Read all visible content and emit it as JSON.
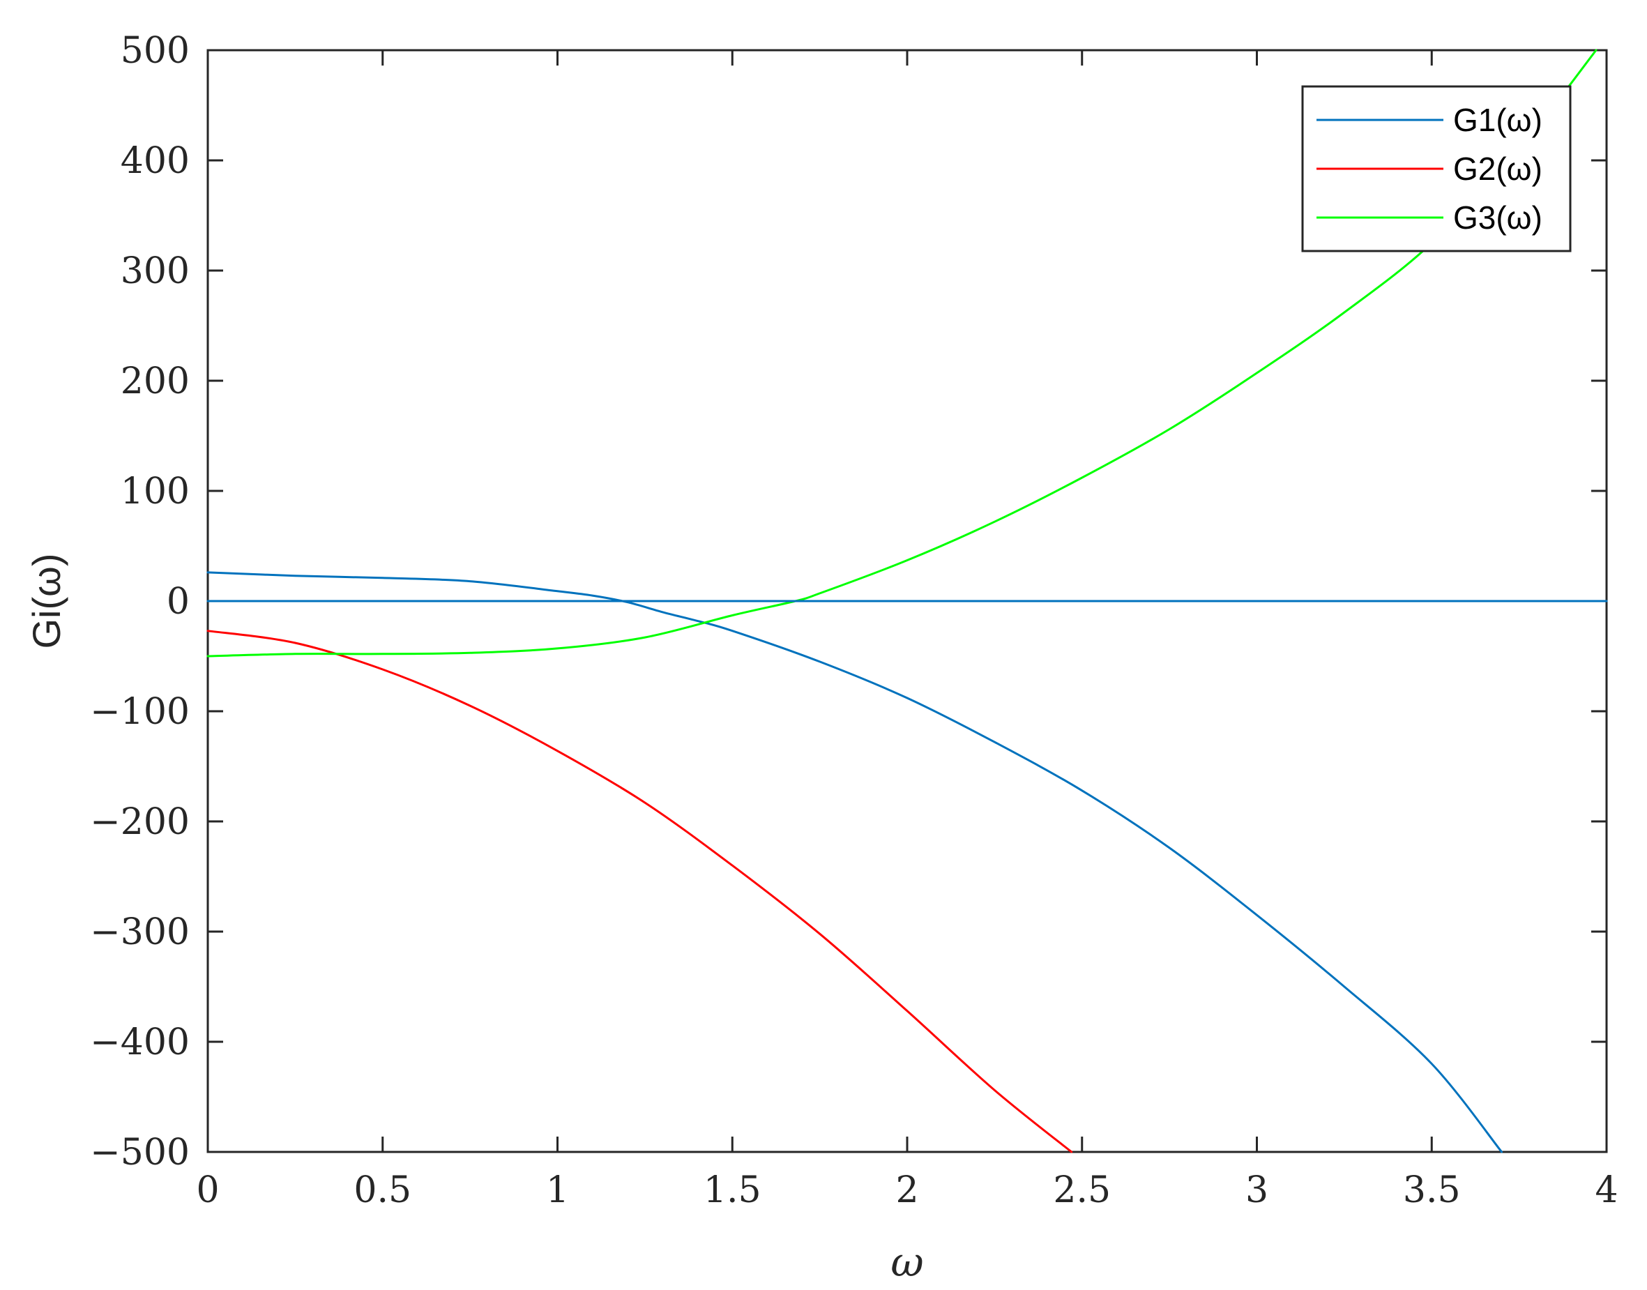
{
  "chart_data": {
    "type": "line",
    "title": "",
    "xlabel": "ω",
    "ylabel": "Gi(ω)",
    "xlim": [
      0,
      4
    ],
    "ylim": [
      -500,
      500
    ],
    "xticks": [
      0,
      0.5,
      1,
      1.5,
      2,
      2.5,
      3,
      3.5,
      4
    ],
    "xtick_labels": [
      "0",
      "0.5",
      "1",
      "1.5",
      "2",
      "2.5",
      "3",
      "3.5",
      "4"
    ],
    "yticks": [
      -500,
      -400,
      -300,
      -200,
      -100,
      0,
      100,
      200,
      300,
      400,
      500
    ],
    "ytick_labels": [
      "−500",
      "−400",
      "−300",
      "−200",
      "−100",
      "0",
      "100",
      "200",
      "300",
      "400",
      "500"
    ],
    "grid": false,
    "legend_position": "top-right",
    "series": [
      {
        "name": "G1(ω)",
        "color": "#0072BD",
        "x": [
          0,
          0.25,
          0.5,
          0.75,
          1.0,
          1.1,
          1.2,
          1.3,
          1.4,
          1.5,
          1.75,
          2.0,
          2.25,
          2.5,
          2.75,
          3.0,
          3.25,
          3.5,
          3.7
        ],
        "y": [
          26,
          23,
          21,
          18,
          9,
          5,
          -1,
          -10,
          -18,
          -27,
          -55,
          -88,
          -128,
          -172,
          -224,
          -285,
          -350,
          -420,
          -500
        ]
      },
      {
        "name": "G2(ω)",
        "color": "#FF0000",
        "x": [
          0,
          0.25,
          0.5,
          0.75,
          1.0,
          1.25,
          1.5,
          1.75,
          2.0,
          2.25,
          2.47
        ],
        "y": [
          -27,
          -38,
          -62,
          -95,
          -136,
          -183,
          -240,
          -302,
          -372,
          -444,
          -500
        ]
      },
      {
        "name": "G3(ω)",
        "color": "#00FF00",
        "x": [
          0,
          0.25,
          0.5,
          0.75,
          1.0,
          1.25,
          1.5,
          1.68,
          1.75,
          2.0,
          2.25,
          2.5,
          2.75,
          3.0,
          3.25,
          3.5,
          3.75,
          3.97
        ],
        "y": [
          -50,
          -48,
          -48,
          -47,
          -43,
          -33,
          -13,
          0,
          7,
          37,
          72,
          112,
          156,
          207,
          262,
          325,
          410,
          500
        ]
      },
      {
        "name": "",
        "color": "#0072BD",
        "x": [
          0,
          4
        ],
        "y": [
          0,
          0
        ]
      }
    ]
  }
}
